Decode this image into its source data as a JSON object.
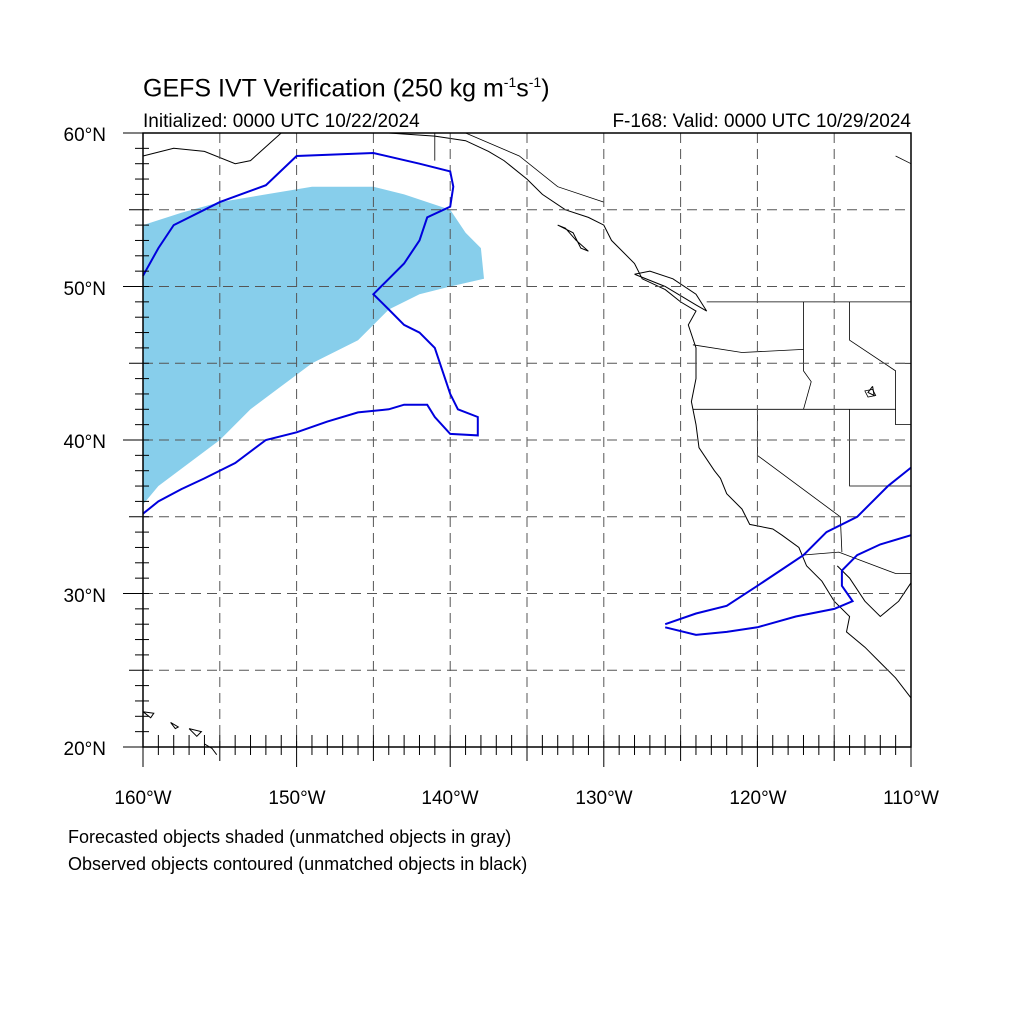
{
  "title": {
    "main": "GEFS IVT Verification (250 kg m",
    "exp1": "-1",
    "mid": "s",
    "exp2": "-1",
    "end": ")"
  },
  "subtitle_left": "Initialized: 0000 UTC 10/22/2024",
  "subtitle_right": "F-168: Valid: 0000 UTC 10/29/2024",
  "lat_labels": [
    "60°N",
    "50°N",
    "40°N",
    "30°N",
    "20°N"
  ],
  "lon_labels": [
    "160°W",
    "150°W",
    "140°W",
    "130°W",
    "120°W",
    "110°W"
  ],
  "caption_line1": "Forecasted objects shaded (unmatched objects in gray)",
  "caption_line2": "Observed objects contoured (unmatched objects in black)",
  "map_extent": {
    "lon_min": -160,
    "lon_max": -110,
    "lat_min": 20,
    "lat_max": 60
  },
  "colors": {
    "forecast_fill": "#87ceeb",
    "observed_contour": "#0000dd",
    "coast": "#000000",
    "grid": "#555555"
  },
  "forecast_objects": [
    {
      "lonlat": [
        [
          -160,
          54
        ],
        [
          -157.5,
          54.8
        ],
        [
          -155,
          55.5
        ],
        [
          -152,
          56
        ],
        [
          -149,
          56.5
        ],
        [
          -145,
          56.5
        ],
        [
          -143,
          56
        ],
        [
          -140,
          55
        ],
        [
          -139,
          53.5
        ],
        [
          -138,
          52.5
        ],
        [
          -137.8,
          50.5
        ],
        [
          -140,
          50
        ],
        [
          -142,
          49.5
        ],
        [
          -144,
          48.5
        ],
        [
          -145,
          47.5
        ],
        [
          -146,
          46.5
        ],
        [
          -149,
          45
        ],
        [
          -151,
          43.5
        ],
        [
          -153,
          42
        ],
        [
          -155,
          40
        ],
        [
          -157,
          38.5
        ],
        [
          -159,
          37
        ],
        [
          -160,
          35.8
        ]
      ]
    }
  ],
  "observed_objects": [
    {
      "lonlat": [
        [
          -160,
          50.7
        ],
        [
          -159,
          52.5
        ],
        [
          -158,
          54
        ],
        [
          -155,
          55.5
        ],
        [
          -152,
          56.6
        ],
        [
          -150,
          58.5
        ],
        [
          -145,
          58.7
        ],
        [
          -142,
          58
        ],
        [
          -140,
          57.5
        ],
        [
          -139.8,
          56.5
        ],
        [
          -140,
          55.2
        ],
        [
          -141.5,
          54.5
        ],
        [
          -142,
          53
        ],
        [
          -143,
          51.5
        ],
        [
          -144,
          50.5
        ],
        [
          -145,
          49.5
        ],
        [
          -144,
          48.5
        ],
        [
          -143,
          47.5
        ],
        [
          -142,
          47
        ],
        [
          -141,
          46
        ],
        [
          -140.5,
          44.5
        ],
        [
          -140,
          43
        ],
        [
          -139.5,
          42
        ],
        [
          -138.2,
          41.5
        ],
        [
          -138.2,
          40.3
        ],
        [
          -140,
          40.4
        ],
        [
          -141,
          41.5
        ],
        [
          -141.5,
          42.3
        ],
        [
          -143,
          42.3
        ],
        [
          -144,
          42
        ],
        [
          -146,
          41.8
        ],
        [
          -148,
          41.2
        ],
        [
          -150,
          40.5
        ],
        [
          -152,
          40
        ],
        [
          -154,
          38.5
        ],
        [
          -156,
          37.5
        ],
        [
          -157.5,
          36.8
        ],
        [
          -159,
          36
        ],
        [
          -160,
          35.2
        ]
      ]
    },
    {
      "lonlat": [
        [
          -126,
          28
        ],
        [
          -124,
          28.7
        ],
        [
          -122,
          29.2
        ],
        [
          -120,
          30.5
        ],
        [
          -118.5,
          31.5
        ],
        [
          -117,
          32.5
        ],
        [
          -115.5,
          34
        ],
        [
          -113.5,
          35
        ],
        [
          -111.5,
          37
        ],
        [
          -110,
          38.2
        ]
      ]
    },
    {
      "lonlat": [
        [
          -110,
          33.8
        ],
        [
          -112,
          33.2
        ],
        [
          -113.5,
          32.5
        ],
        [
          -114.5,
          31.5
        ],
        [
          -114.5,
          30.5
        ],
        [
          -113.8,
          29.5
        ],
        [
          -115,
          29
        ],
        [
          -117.5,
          28.5
        ],
        [
          -120,
          27.8
        ],
        [
          -122,
          27.5
        ],
        [
          -124,
          27.3
        ],
        [
          -126,
          27.8
        ]
      ]
    }
  ],
  "coastlines": [
    {
      "lonlat": [
        [
          -160,
          58.5
        ],
        [
          -158,
          59
        ],
        [
          -156,
          58.8
        ],
        [
          -154,
          58
        ],
        [
          -153,
          58.2
        ],
        [
          -151,
          60
        ]
      ]
    },
    {
      "lonlat": [
        [
          -146,
          60
        ],
        [
          -144,
          60
        ],
        [
          -141,
          59.8
        ],
        [
          -139,
          59.5
        ],
        [
          -137.5,
          58.8
        ],
        [
          -136.5,
          58.2
        ],
        [
          -135,
          57
        ],
        [
          -134,
          56
        ],
        [
          -132.5,
          55
        ],
        [
          -131,
          54.5
        ],
        [
          -130,
          54
        ],
        [
          -129.5,
          53
        ],
        [
          -129,
          52.5
        ],
        [
          -128,
          51.5
        ],
        [
          -127.5,
          50.5
        ],
        [
          -126,
          49.8
        ],
        [
          -125,
          49
        ],
        [
          -124,
          48.4
        ],
        [
          -124.5,
          47.5
        ],
        [
          -124,
          46
        ],
        [
          -124,
          44
        ],
        [
          -124.3,
          42.5
        ],
        [
          -124,
          41
        ],
        [
          -123.8,
          39.5
        ],
        [
          -122.8,
          38
        ],
        [
          -122.4,
          37.5
        ],
        [
          -122,
          36.5
        ],
        [
          -121,
          35.5
        ],
        [
          -120.5,
          34.5
        ],
        [
          -119,
          34.2
        ],
        [
          -118.4,
          33.8
        ],
        [
          -117.3,
          33
        ],
        [
          -116.8,
          31.8
        ],
        [
          -115.8,
          30.8
        ],
        [
          -115,
          29.5
        ],
        [
          -114,
          28.5
        ],
        [
          -114.2,
          27.5
        ],
        [
          -113,
          26.5
        ],
        [
          -112,
          25.5
        ],
        [
          -111,
          24.5
        ],
        [
          -110,
          23.2
        ]
      ]
    },
    {
      "lonlat": [
        [
          -110,
          30.7
        ],
        [
          -110.8,
          29.5
        ],
        [
          -112,
          28.5
        ],
        [
          -113,
          29.5
        ],
        [
          -114,
          31
        ],
        [
          -114.8,
          31.8
        ]
      ]
    },
    {
      "lonlat": [
        [
          -133,
          54
        ],
        [
          -132,
          53.5
        ],
        [
          -131.5,
          52.5
        ],
        [
          -131,
          52.3
        ],
        [
          -131.8,
          53
        ],
        [
          -132.5,
          53.8
        ],
        [
          -133,
          54
        ]
      ]
    },
    {
      "lonlat": [
        [
          -128,
          50.8
        ],
        [
          -127,
          50.4
        ],
        [
          -126,
          50
        ],
        [
          -125,
          49.4
        ],
        [
          -124,
          48.8
        ],
        [
          -123.3,
          48.4
        ],
        [
          -124,
          49.5
        ],
        [
          -125.5,
          50.5
        ],
        [
          -127,
          51
        ],
        [
          -128,
          50.8
        ]
      ]
    },
    {
      "lonlat": [
        [
          -160,
          22.3
        ],
        [
          -159.3,
          22.2
        ],
        [
          -159.5,
          21.9
        ],
        [
          -160,
          22.3
        ]
      ]
    },
    {
      "lonlat": [
        [
          -158.2,
          21.6
        ],
        [
          -157.7,
          21.3
        ],
        [
          -157.9,
          21.2
        ],
        [
          -158.2,
          21.6
        ]
      ]
    },
    {
      "lonlat": [
        [
          -157,
          21.2
        ],
        [
          -156.2,
          21.0
        ],
        [
          -156.5,
          20.7
        ],
        [
          -157,
          21.2
        ]
      ]
    },
    {
      "lonlat": [
        [
          -156,
          20.2
        ],
        [
          -155.5,
          19.9
        ],
        [
          -155.2,
          19.5
        ]
      ]
    },
    {
      "lonlat": [
        [
          -112.5,
          43.5
        ],
        [
          -112.8,
          43.1
        ],
        [
          -112.4,
          42.9
        ],
        [
          -112.5,
          43.5
        ]
      ]
    }
  ],
  "borders": [
    {
      "lonlat": [
        [
          -123.3,
          49
        ],
        [
          -110,
          49
        ]
      ]
    },
    {
      "lonlat": [
        [
          -124.2,
          46.2
        ],
        [
          -121,
          45.7
        ],
        [
          -117,
          45.9
        ]
      ]
    },
    {
      "lonlat": [
        [
          -124.2,
          42
        ],
        [
          -111,
          42
        ]
      ]
    },
    {
      "lonlat": [
        [
          -120,
          42
        ],
        [
          -120,
          39
        ],
        [
          -114.6,
          35
        ],
        [
          -114.5,
          32.7
        ]
      ]
    },
    {
      "lonlat": [
        [
          -117.1,
          32.5
        ],
        [
          -114.7,
          32.7
        ],
        [
          -111,
          31.3
        ],
        [
          -110,
          31.3
        ]
      ]
    },
    {
      "lonlat": [
        [
          -117,
          49
        ],
        [
          -117,
          44.5
        ],
        [
          -116.5,
          43.8
        ],
        [
          -117,
          42
        ]
      ]
    },
    {
      "lonlat": [
        [
          -114,
          49
        ],
        [
          -114,
          46.5
        ],
        [
          -111,
          44.5
        ],
        [
          -111,
          42
        ]
      ]
    },
    {
      "lonlat": [
        [
          -111,
          42
        ],
        [
          -111,
          41
        ],
        [
          -110,
          41
        ]
      ]
    },
    {
      "lonlat": [
        [
          -114,
          42
        ],
        [
          -114,
          37
        ],
        [
          -110,
          37
        ]
      ]
    },
    {
      "lonlat": [
        [
          -111,
          45
        ],
        [
          -110,
          45
        ]
      ]
    },
    {
      "lonlat": [
        [
          -110,
          58
        ],
        [
          -111,
          58.5
        ]
      ]
    },
    {
      "lonlat": [
        [
          -141,
          60
        ],
        [
          -141,
          58.2
        ]
      ]
    },
    {
      "lonlat": [
        [
          -139,
          60
        ],
        [
          -135.5,
          58.5
        ],
        [
          -133,
          56.5
        ],
        [
          -130,
          55.5
        ]
      ]
    }
  ],
  "lakes": [
    {
      "lonlat": [
        [
          -113,
          43.2
        ],
        [
          -112.8,
          42.8
        ],
        [
          -112.3,
          42.9
        ],
        [
          -112.5,
          43.3
        ],
        [
          -113,
          43.2
        ]
      ]
    }
  ]
}
